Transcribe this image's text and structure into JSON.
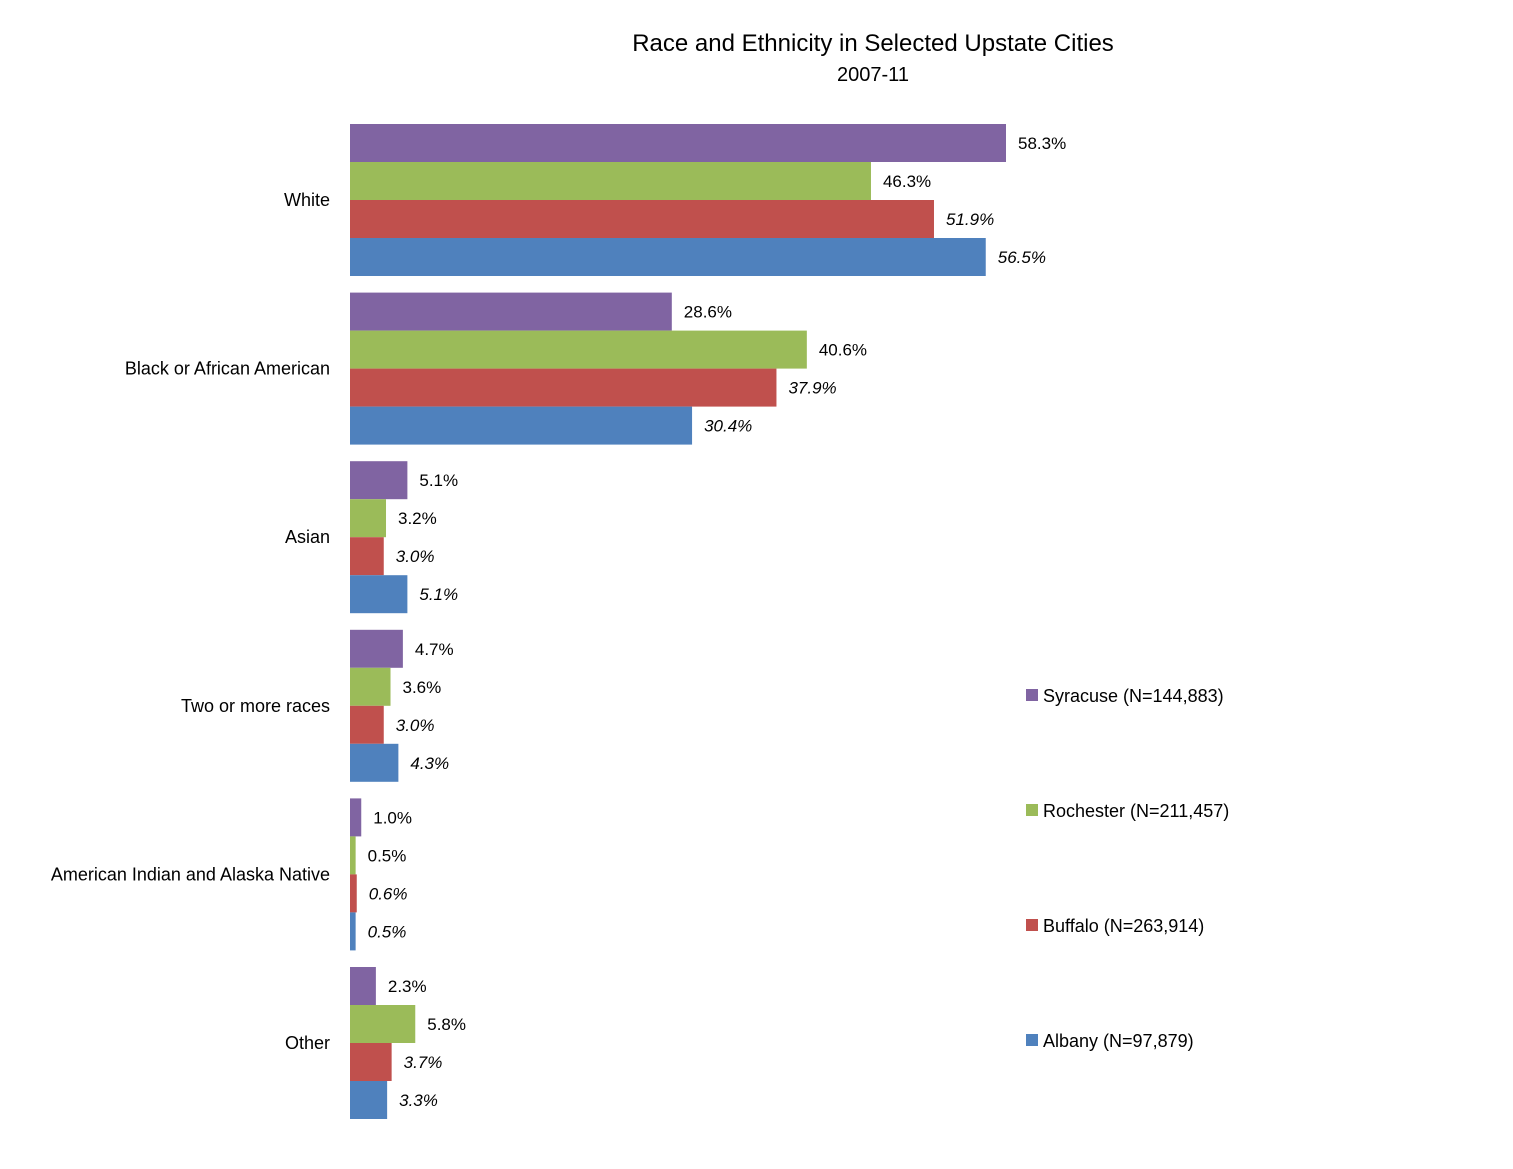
{
  "chart_data": {
    "type": "bar",
    "orientation": "horizontal",
    "title": "Race and Ethnicity in Selected Upstate Cities",
    "subtitle": "2007-11",
    "categories": [
      "White",
      "Black or African American",
      "Asian",
      "Two or more races",
      "American Indian and Alaska Native",
      "Other"
    ],
    "series": [
      {
        "name": "Syracuse (N=144,883)",
        "color": "#8064A2",
        "italic": false,
        "values": [
          58.3,
          28.6,
          5.1,
          4.7,
          1.0,
          2.3
        ],
        "labels": [
          "58.3%",
          "28.6%",
          "5.1%",
          "4.7%",
          "1.0%",
          "2.3%"
        ]
      },
      {
        "name": "Rochester (N=211,457)",
        "color": "#9BBB59",
        "italic": false,
        "values": [
          46.3,
          40.6,
          3.2,
          3.6,
          0.5,
          5.8
        ],
        "labels": [
          "46.3%",
          "40.6%",
          "3.2%",
          "3.6%",
          "0.5%",
          "5.8%"
        ]
      },
      {
        "name": "Buffalo (N=263,914)",
        "color": "#C0504D",
        "italic": true,
        "values": [
          51.9,
          37.9,
          3.0,
          3.0,
          0.6,
          3.7
        ],
        "labels": [
          "51.9%",
          "37.9%",
          "3.0%",
          "3.0%",
          "0.6%",
          "3.7%"
        ]
      },
      {
        "name": "Albany (N=97,879)",
        "color": "#4F81BD",
        "italic": true,
        "values": [
          56.5,
          30.4,
          5.1,
          4.3,
          0.5,
          3.3
        ],
        "labels": [
          "56.5%",
          "30.4%",
          "5.1%",
          "4.3%",
          "0.5%",
          "3.3%"
        ]
      }
    ],
    "xlim": [
      0,
      70
    ],
    "grid": false,
    "legend_position": "right"
  }
}
